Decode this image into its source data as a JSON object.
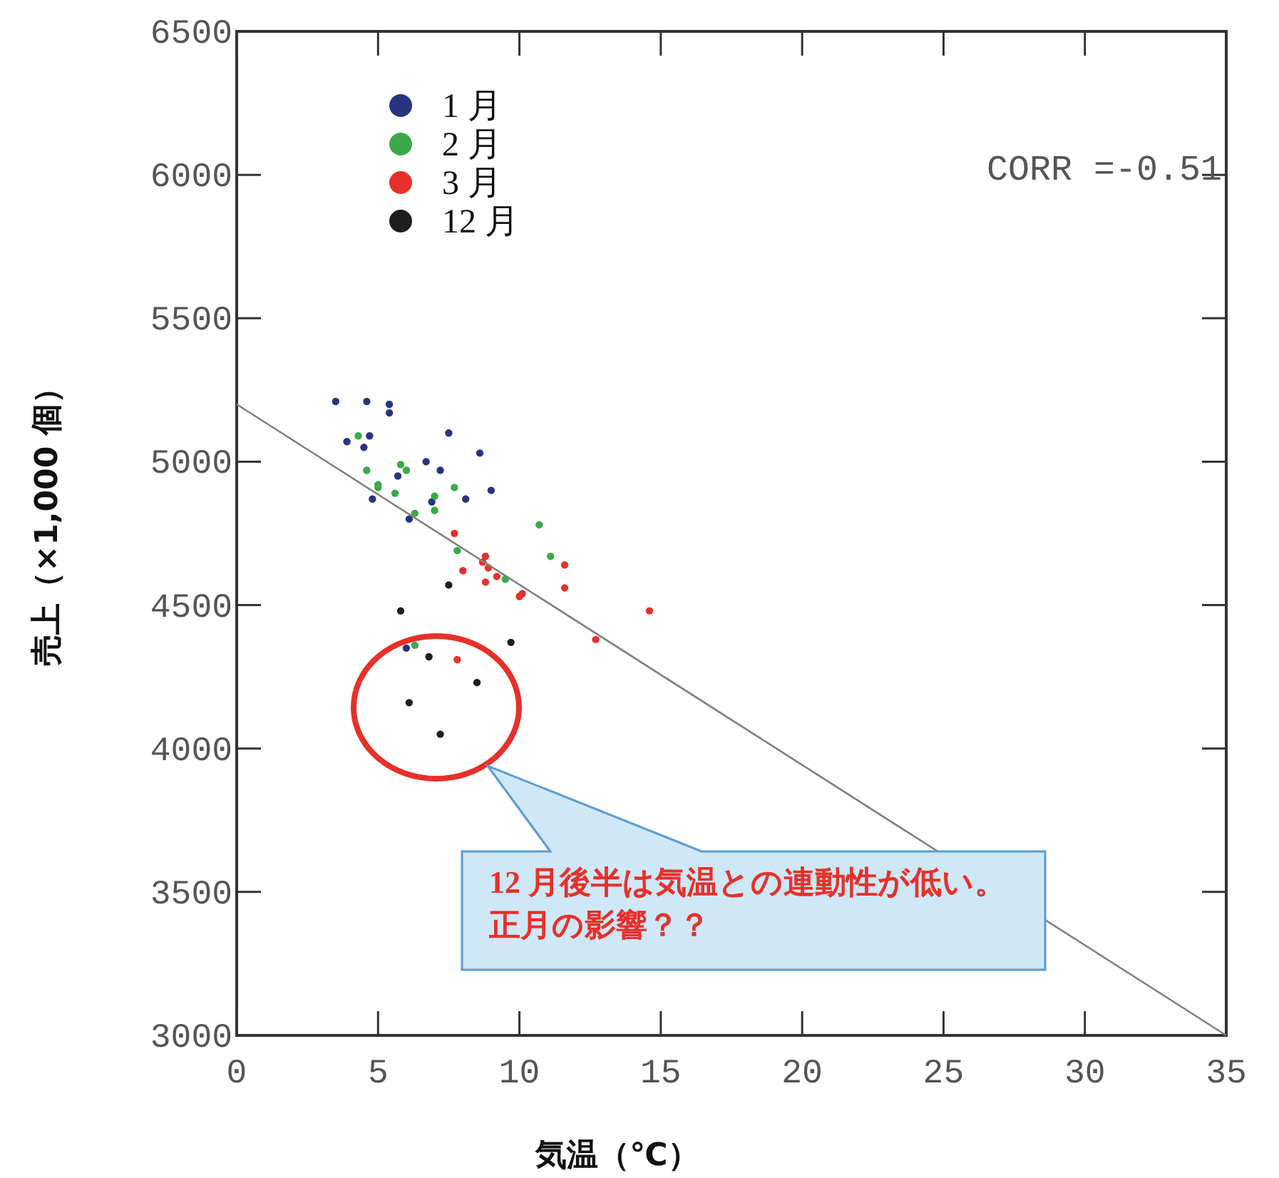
{
  "chart_data": {
    "type": "scatter",
    "xlabel": "気温（℃）",
    "ylabel": "売上（×1,000 個）",
    "xlim": [
      0,
      35
    ],
    "ylim": [
      3000,
      6500
    ],
    "xticks": [
      0,
      5,
      10,
      15,
      20,
      25,
      30,
      35
    ],
    "yticks": [
      3000,
      3500,
      4000,
      4500,
      5000,
      5500,
      6000,
      6500
    ],
    "grid": false,
    "legend": "top left",
    "marker": "circle",
    "annotations": [
      "CORR =-0.51",
      "**12** 月後半は気温との連動性が低い。正月の影響？？"
    ],
    "series": [
      {
        "name": "1 月",
        "color": "#27357f",
        "x": [
          3.5,
          4.6,
          5.4,
          5.4,
          4.7,
          3.9,
          4.5,
          7.5,
          8.6,
          6.7,
          7.2,
          5.7,
          4.8,
          6.9,
          8.1,
          9.0,
          6.1,
          6.0
        ],
        "values": [
          5210,
          5210,
          5200,
          5170,
          5090,
          5070,
          5050,
          5100,
          5030,
          5000,
          4970,
          4950,
          4870,
          4860,
          4870,
          4900,
          4800,
          4350
        ]
      },
      {
        "name": "2 月",
        "color": "#3aaa48",
        "x": [
          4.3,
          4.6,
          5.8,
          6.0,
          5.0,
          5.0,
          5.6,
          7.7,
          7.0,
          7.0,
          6.3,
          10.7,
          7.8,
          11.1,
          9.5,
          6.3
        ],
        "values": [
          5090,
          4970,
          4990,
          4970,
          4920,
          4910,
          4890,
          4910,
          4880,
          4830,
          4820,
          4780,
          4690,
          4670,
          4590,
          4360
        ]
      },
      {
        "name": "3 月",
        "color": "#e8302a",
        "x": [
          7.7,
          8.8,
          8.7,
          8.9,
          11.6,
          8.0,
          9.2,
          8.8,
          11.6,
          10.1,
          10.0,
          14.6,
          12.7,
          7.8
        ],
        "values": [
          4750,
          4670,
          4650,
          4630,
          4640,
          4620,
          4600,
          4580,
          4560,
          4540,
          4530,
          4480,
          4380,
          4310
        ]
      },
      {
        "name": "12 月",
        "color": "#1e1e1e",
        "x": [
          7.5,
          5.8,
          9.7,
          6.8,
          8.5,
          6.1,
          7.2
        ],
        "values": [
          4570,
          4480,
          4370,
          4320,
          4230,
          4160,
          4050
        ]
      },
      {
        "type": "line",
        "marker": "none",
        "color": "#808080",
        "x": [
          0,
          35
        ],
        "values": [
          5200,
          3000
        ]
      }
    ]
  }
}
